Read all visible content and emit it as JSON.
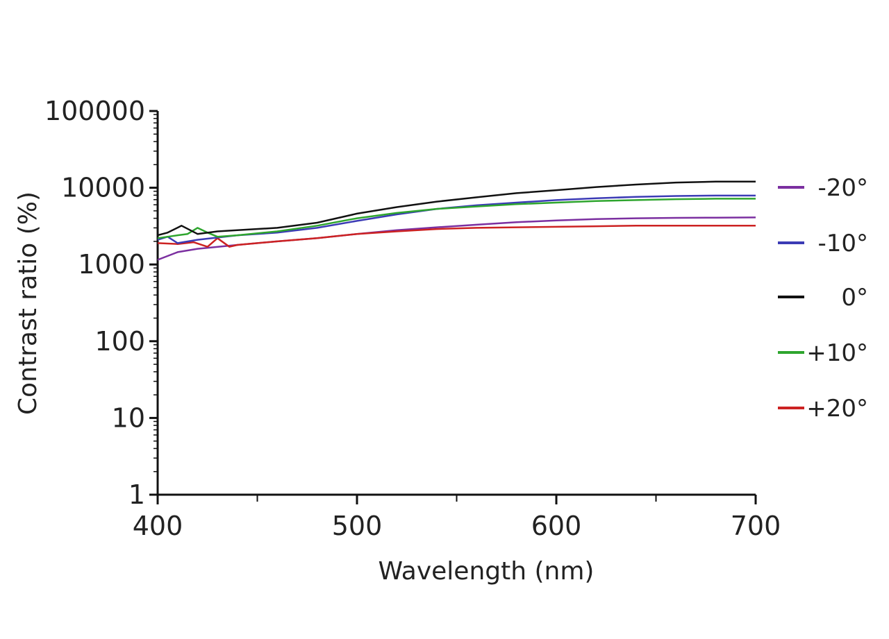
{
  "chart_data": {
    "type": "line",
    "title": "",
    "xlabel": "Wavelength (nm)",
    "ylabel": "Contrast ratio (%)",
    "xlim": [
      400,
      700
    ],
    "ylim": [
      1,
      100000
    ],
    "y_scale": "log",
    "grid": false,
    "legend_position": "right",
    "x_ticks": [
      "400",
      "500",
      "600",
      "700"
    ],
    "y_ticks": [
      "1",
      "10",
      "100",
      "1000",
      "10000",
      "100000"
    ],
    "series": [
      {
        "name": "-20°",
        "color": "#7b2fa0",
        "x": [
          400,
          410,
          420,
          440,
          460,
          480,
          500,
          520,
          540,
          560,
          580,
          600,
          620,
          640,
          660,
          680,
          700
        ],
        "y": [
          1150,
          1450,
          1600,
          1800,
          2000,
          2200,
          2500,
          2800,
          3050,
          3300,
          3550,
          3750,
          3900,
          4000,
          4050,
          4080,
          4100
        ]
      },
      {
        "name": "-10°",
        "color": "#3b3bb5",
        "x": [
          400,
          405,
          410,
          420,
          440,
          460,
          480,
          500,
          520,
          540,
          560,
          580,
          600,
          620,
          640,
          660,
          680,
          700
        ],
        "y": [
          2100,
          2300,
          1900,
          2100,
          2400,
          2600,
          3000,
          3700,
          4500,
          5300,
          5900,
          6400,
          6900,
          7300,
          7600,
          7800,
          7900,
          7900
        ]
      },
      {
        "name": "0°",
        "color": "#111111",
        "x": [
          400,
          405,
          412,
          420,
          430,
          440,
          460,
          480,
          500,
          520,
          540,
          560,
          580,
          600,
          620,
          640,
          660,
          680,
          700
        ],
        "y": [
          2400,
          2600,
          3200,
          2500,
          2700,
          2800,
          3000,
          3500,
          4600,
          5600,
          6600,
          7500,
          8500,
          9300,
          10200,
          11000,
          11700,
          12000,
          12000
        ]
      },
      {
        "name": "+10°",
        "color": "#2ea52e",
        "x": [
          400,
          410,
          415,
          420,
          425,
          430,
          440,
          460,
          480,
          500,
          520,
          540,
          560,
          580,
          600,
          620,
          640,
          660,
          680,
          700
        ],
        "y": [
          2200,
          2400,
          2500,
          3000,
          2600,
          2300,
          2400,
          2700,
          3200,
          4000,
          4700,
          5300,
          5700,
          6100,
          6400,
          6700,
          6900,
          7100,
          7200,
          7200
        ]
      },
      {
        "name": "+20°",
        "color": "#cc2222",
        "x": [
          400,
          410,
          418,
          425,
          430,
          436,
          440,
          460,
          480,
          500,
          520,
          540,
          560,
          580,
          600,
          620,
          640,
          660,
          680,
          700
        ],
        "y": [
          1900,
          1850,
          1950,
          1700,
          2200,
          1700,
          1800,
          2000,
          2200,
          2500,
          2700,
          2900,
          3000,
          3050,
          3100,
          3150,
          3200,
          3200,
          3200,
          3200
        ]
      }
    ]
  }
}
